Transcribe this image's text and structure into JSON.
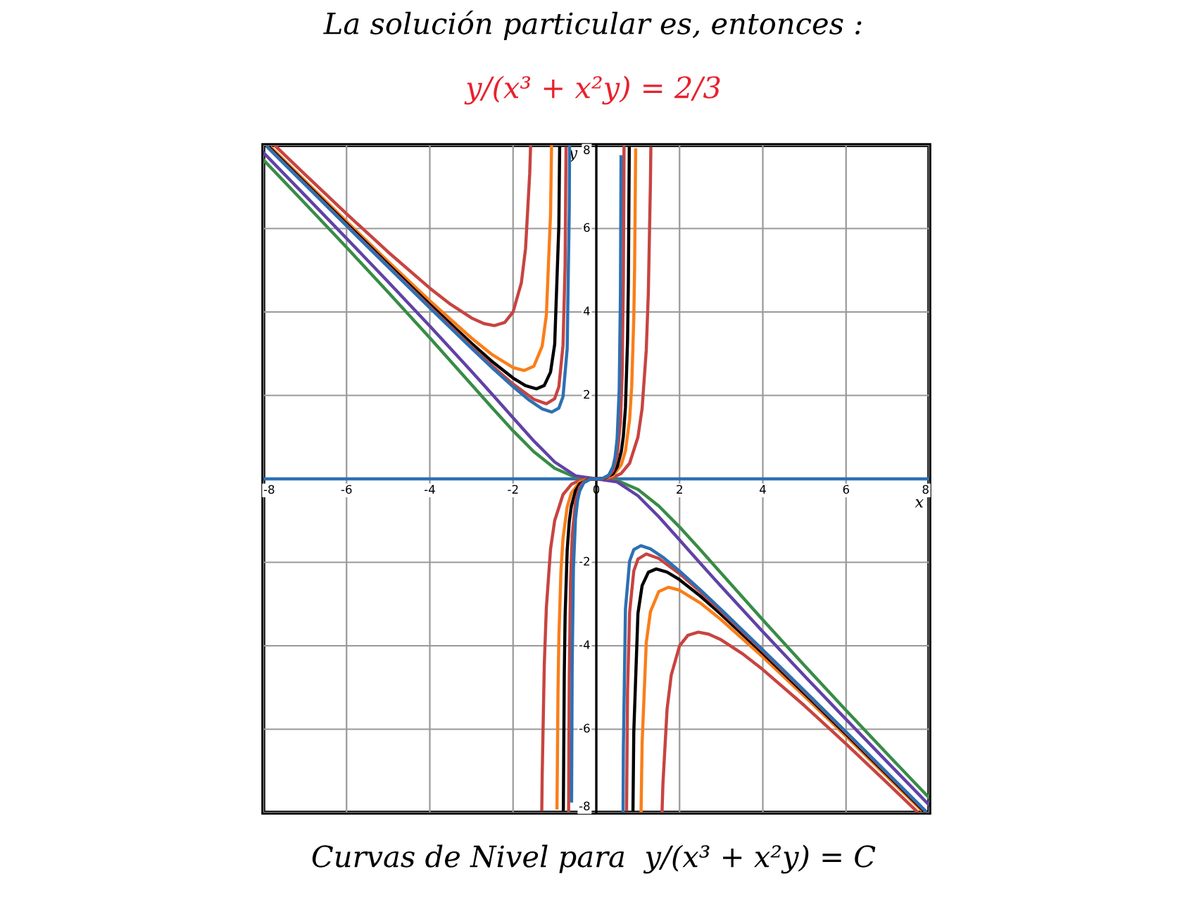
{
  "chart_data": {
    "type": "line",
    "title": "La solución particular es, entonces :",
    "subtitle": "y/(x³ + x²y) = 2/3",
    "annotations": [
      "Curvas de Nivel para  y/(x³ + x²y) = C"
    ],
    "xlabel": "x",
    "ylabel": "y",
    "xlim": [
      -8,
      8
    ],
    "ylim": [
      -8,
      8
    ],
    "xticks": [
      -8,
      -6,
      -4,
      -2,
      0,
      2,
      4,
      6,
      8
    ],
    "yticks": [
      -8,
      -6,
      -4,
      -2,
      2,
      4,
      6,
      8
    ],
    "grid": true,
    "legend": false,
    "marker": "none",
    "line_style": "solid",
    "series": [
      {
        "color": "#2d70b3",
        "x": [
          -8,
          8
        ],
        "values": [
          0,
          0
        ]
      },
      {
        "color": "#388c46",
        "x": [
          -8,
          -7,
          -6,
          -5,
          -4,
          -3,
          -2.5,
          -2,
          -1.5,
          -1,
          -0.5,
          0,
          0.5,
          1,
          1.5,
          2,
          2.5,
          3,
          4,
          5,
          6,
          7,
          8
        ],
        "values": [
          7.649,
          6.604,
          5.547,
          4.474,
          3.379,
          2.261,
          1.7,
          1.153,
          0.65,
          0.254,
          0.039,
          0,
          -0.039,
          -0.254,
          -0.65,
          -1.153,
          -1.7,
          -2.261,
          -3.379,
          -4.474,
          -5.547,
          -6.604,
          -7.649
        ]
      },
      {
        "color": "#6042a6",
        "x": [
          -8,
          -7,
          -6,
          -5,
          -4,
          -3,
          -2.5,
          -2,
          -1.5,
          -1,
          -0.5,
          0,
          0.5,
          1,
          1.5,
          2,
          2.5,
          3,
          4,
          5,
          6,
          7,
          8
        ],
        "values": [
          7.82,
          6.796,
          5.765,
          4.722,
          3.663,
          2.579,
          2.024,
          1.463,
          0.907,
          0.405,
          0.073,
          0,
          -0.073,
          -0.405,
          -0.907,
          -1.463,
          -2.024,
          -2.579,
          -3.663,
          -4.722,
          -5.765,
          -6.796,
          -7.82
        ]
      },
      {
        "color": "#c74440",
        "x": [
          -7.7,
          -7,
          -6,
          -5,
          -4,
          -3.5,
          -3,
          -2.7,
          -2.45,
          -2.2,
          -2,
          -1.8,
          -1.7,
          -1.6,
          -1.58
        ],
        "values": [
          7.969,
          7.298,
          6.353,
          5.435,
          4.571,
          4.183,
          3.857,
          3.721,
          3.674,
          3.749,
          4,
          4.703,
          5.52,
          7.314,
          7.95
        ]
      },
      {
        "color": "#c74440",
        "x": [
          -1.31,
          -1.3,
          -1.25,
          -1.2,
          -1.1,
          -1,
          -0.8,
          -0.6,
          -0.4,
          -0.2,
          0,
          0.2,
          0.4,
          0.6,
          0.8,
          1,
          1.1,
          1.2,
          1.25,
          1.3,
          1.31
        ],
        "values": [
          -7.918,
          -7.087,
          -4.464,
          -3.086,
          -1.685,
          -1,
          -0.376,
          -0.132,
          -0.035,
          -0.004,
          0,
          0.004,
          0.035,
          0.132,
          0.376,
          1,
          1.685,
          3.086,
          4.464,
          7.087,
          7.918
        ]
      },
      {
        "color": "#c74440",
        "x": [
          1.58,
          1.6,
          1.7,
          1.8,
          2,
          2.2,
          2.45,
          2.7,
          3,
          3.5,
          4,
          5,
          6,
          7,
          7.7
        ],
        "values": [
          -7.95,
          -7.314,
          -5.52,
          -4.703,
          -4,
          -3.749,
          -3.674,
          -3.721,
          -3.857,
          -4.183,
          -4.571,
          -5.435,
          -6.353,
          -7.298,
          -7.969
        ]
      },
      {
        "color": "#fa7e19",
        "x": [
          -7.8,
          -7,
          -6,
          -5,
          -4,
          -3,
          -2.5,
          -2,
          -1.73,
          -1.5,
          -1.3,
          -1.2,
          -1.1,
          -1.075
        ],
        "values": [
          7.93,
          7.146,
          6.171,
          5.208,
          4.267,
          3.375,
          2.976,
          2.667,
          2.598,
          2.7,
          3.184,
          3.927,
          6.338,
          7.98
        ]
      },
      {
        "color": "#fa7e19",
        "x": [
          -0.945,
          -0.92,
          -0.9,
          -0.85,
          -0.8,
          -0.7,
          -0.6,
          -0.4,
          -0.2,
          0,
          0.2,
          0.4,
          0.6,
          0.7,
          0.8,
          0.85,
          0.9,
          0.92,
          0.945
        ],
        "values": [
          -7.887,
          -5.07,
          -3.837,
          -2.213,
          -1.422,
          -0.673,
          -0.338,
          -0.076,
          -0.008,
          0,
          0.008,
          0.076,
          0.338,
          0.673,
          1.422,
          2.213,
          3.837,
          5.07,
          7.887
        ]
      },
      {
        "color": "#fa7e19",
        "x": [
          1.075,
          1.1,
          1.2,
          1.3,
          1.5,
          1.73,
          2,
          2.5,
          3,
          4,
          5,
          6,
          7,
          7.8
        ],
        "values": [
          -7.98,
          -6.338,
          -3.927,
          -3.184,
          -2.7,
          -2.598,
          -2.667,
          -2.976,
          -3.375,
          -4.267,
          -5.208,
          -6.171,
          -7.146,
          -7.93
        ]
      },
      {
        "color": "#000000",
        "x": [
          -7.85,
          -7,
          -6,
          -5,
          -4,
          -3,
          -2.5,
          -2,
          -1.7,
          -1.44,
          -1.25,
          -1.1,
          -1,
          -0.9,
          -0.881
        ],
        "values": [
          7.939,
          7.1,
          6.117,
          5.142,
          4.18,
          3.249,
          2.81,
          2.417,
          2.233,
          2.158,
          2.239,
          2.56,
          3.226,
          6.075,
          7.93
        ]
      },
      {
        "color": "#000000",
        "x": [
          -0.792,
          -0.77,
          -0.75,
          -0.7,
          -0.65,
          -0.6,
          -0.5,
          -0.4,
          -0.2,
          0,
          0.2,
          0.4,
          0.5,
          0.6,
          0.65,
          0.7,
          0.75,
          0.77,
          0.792
        ],
        "values": [
          -7.92,
          -4.7,
          -3.309,
          -1.715,
          -1.027,
          -0.655,
          -0.284,
          -0.121,
          -0.012,
          0,
          0.012,
          0.121,
          0.284,
          0.655,
          1.027,
          1.715,
          3.309,
          4.7,
          7.92
        ]
      },
      {
        "color": "#000000",
        "x": [
          0.881,
          0.9,
          1,
          1.1,
          1.25,
          1.44,
          1.7,
          2,
          2.5,
          3,
          4,
          5,
          6,
          7,
          7.85
        ],
        "values": [
          -7.93,
          -6.075,
          -3.226,
          -2.56,
          -2.239,
          -2.158,
          -2.233,
          -2.417,
          -2.81,
          -3.249,
          -4.18,
          -5.142,
          -6.117,
          -7.1,
          -7.939
        ]
      },
      {
        "color": "#c74440",
        "x": [
          -7.9,
          -7,
          -6,
          -5,
          -4,
          -3,
          -2.5,
          -2,
          -1.5,
          -1.2,
          -1,
          -0.9,
          -0.8,
          -0.75,
          -0.727
        ],
        "values": [
          7.961,
          7.069,
          6.081,
          5.098,
          4.124,
          3.169,
          2.708,
          2.273,
          1.907,
          1.8,
          1.923,
          2.209,
          3.2,
          5.114,
          7.92
        ]
      },
      {
        "color": "#c74440",
        "x": [
          -0.6655,
          -0.65,
          -0.62,
          -0.58,
          -0.5,
          -0.4,
          -0.3,
          -0.15,
          0,
          0.15,
          0.3,
          0.4,
          0.5,
          0.58,
          0.62,
          0.65,
          0.6655
        ],
        "values": [
          -7.94,
          -4.776,
          -2.493,
          -1.359,
          -0.543,
          -0.2,
          -0.069,
          -0.007,
          0,
          0.007,
          0.069,
          0.2,
          0.543,
          1.359,
          2.493,
          4.776,
          7.94
        ]
      },
      {
        "color": "#c74440",
        "x": [
          0.727,
          0.75,
          0.8,
          0.9,
          1,
          1.2,
          1.5,
          2,
          2.5,
          3,
          4,
          5,
          6,
          7,
          7.9
        ],
        "values": [
          -7.92,
          -5.114,
          -3.2,
          -2.209,
          -1.923,
          -1.8,
          -1.907,
          -2.273,
          -2.708,
          -3.169,
          -4.124,
          -5.098,
          -6.081,
          -7.069,
          -7.961
        ]
      },
      {
        "color": "#2d70b3",
        "x": [
          -7.9,
          -7,
          -6,
          -5,
          -4,
          -3,
          -2.5,
          -2,
          -1.6,
          -1.3,
          -1.07,
          -0.9,
          -0.8,
          -0.7,
          -0.65,
          -0.643
        ],
        "values": [
          7.949,
          7.055,
          6.064,
          5.077,
          4.097,
          3.132,
          2.662,
          2.21,
          1.879,
          1.677,
          1.602,
          1.695,
          1.969,
          3.118,
          6.461,
          7.96
        ]
      },
      {
        "color": "#2d70b3",
        "x": [
          -0.594,
          -0.58,
          -0.55,
          -0.5,
          -0.45,
          -0.4,
          -0.3,
          -0.15,
          0,
          0.15,
          0.3,
          0.4,
          0.45,
          0.5,
          0.55,
          0.58,
          0.594
        ],
        "values": [
          -7.72,
          -4.475,
          -2.147,
          -0.962,
          -0.513,
          -0.291,
          -0.093,
          -0.009,
          0,
          0.009,
          0.093,
          0.291,
          0.513,
          0.962,
          2.147,
          4.475,
          7.72
        ]
      },
      {
        "color": "#2d70b3",
        "x": [
          0.643,
          0.65,
          0.7,
          0.8,
          0.9,
          1.07,
          1.3,
          1.6,
          2,
          2.5,
          3,
          4,
          5,
          6,
          7,
          7.9
        ],
        "values": [
          -7.96,
          -6.461,
          -3.118,
          -1.969,
          -1.695,
          -1.602,
          -1.677,
          -1.879,
          -2.21,
          -2.662,
          -3.132,
          -4.097,
          -5.077,
          -6.064,
          -7.055,
          -7.949
        ]
      }
    ]
  }
}
